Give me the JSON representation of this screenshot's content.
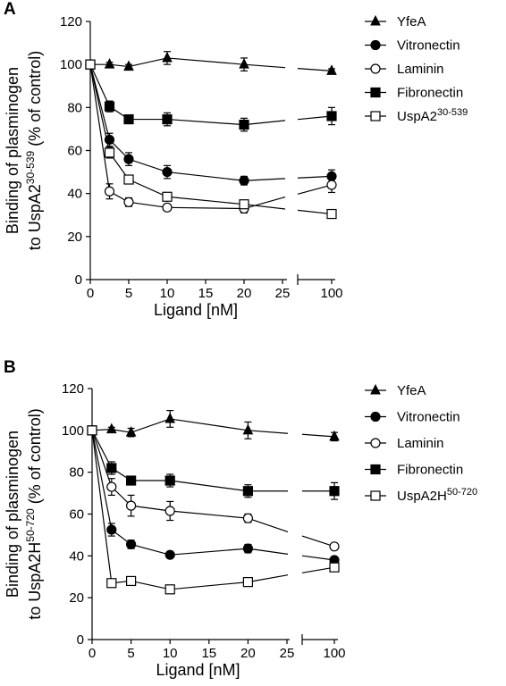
{
  "chart_data": [
    {
      "type": "line",
      "panel": "A",
      "ylabel_line1": "Binding of plasminogen",
      "ylabel_line2_prefix": "to UspA2",
      "ylabel_line2_sup": "30-539",
      "ylabel_line2_suffix": " (% of control)",
      "xlabel": "Ligand [nM]",
      "ylim": [
        0,
        120
      ],
      "yticks": [
        0,
        20,
        40,
        60,
        80,
        100,
        120
      ],
      "xticks": [
        0,
        5,
        10,
        15,
        20,
        25
      ],
      "xbreak_tick": 100,
      "x": [
        0,
        2.5,
        5,
        10,
        20
      ],
      "legend_position": "right",
      "series": [
        {
          "name": "YfeA",
          "name_sup": "",
          "marker": "triangle",
          "values": [
            100,
            100,
            99,
            103,
            100
          ],
          "errors": [
            0,
            1,
            1,
            3,
            3
          ],
          "break_value": 97,
          "break_error": 1
        },
        {
          "name": "Vitronectin",
          "name_sup": "",
          "marker": "circle-filled",
          "values": [
            100,
            65,
            56,
            50,
            46
          ],
          "errors": [
            0,
            3,
            3,
            3,
            2
          ],
          "break_value": 48,
          "break_error": 3
        },
        {
          "name": "Laminin",
          "name_sup": "",
          "marker": "circle-open",
          "values": [
            100,
            41,
            36,
            33.5,
            33
          ],
          "errors": [
            0,
            3.5,
            2,
            1,
            2
          ],
          "break_value": 44,
          "break_error": 3.5
        },
        {
          "name": "Fibronectin",
          "name_sup": "",
          "marker": "square-filled",
          "values": [
            100,
            80.5,
            74.5,
            74.5,
            72
          ],
          "errors": [
            0,
            2.5,
            2,
            3,
            3
          ],
          "break_value": 76,
          "break_error": 4
        },
        {
          "name": "UspA2",
          "name_sup": "30-539",
          "marker": "square-open",
          "values": [
            100,
            59,
            46.5,
            38.5,
            35
          ],
          "errors": [
            0,
            2.5,
            1.5,
            1,
            1
          ],
          "break_value": 30.5,
          "break_error": 1
        }
      ]
    },
    {
      "type": "line",
      "panel": "B",
      "ylabel_line1": "Binding of plasminogen",
      "ylabel_line2_prefix": "to UspA2H",
      "ylabel_line2_sup": "50-720",
      "ylabel_line2_suffix": " (% of control)",
      "xlabel": "Ligand [nM]",
      "ylim": [
        0,
        120
      ],
      "yticks": [
        0,
        20,
        40,
        60,
        80,
        100,
        120
      ],
      "xticks": [
        0,
        5,
        10,
        15,
        20,
        25
      ],
      "xbreak_tick": 100,
      "x": [
        0,
        2.5,
        5,
        10,
        20
      ],
      "legend_position": "right",
      "series": [
        {
          "name": "YfeA",
          "name_sup": "",
          "marker": "triangle",
          "values": [
            100,
            100.5,
            99,
            105.5,
            100
          ],
          "errors": [
            0,
            1,
            2,
            4,
            4
          ],
          "break_value": 97,
          "break_error": 2
        },
        {
          "name": "Vitronectin",
          "name_sup": "",
          "marker": "circle-filled",
          "values": [
            100,
            52.5,
            45.5,
            40.5,
            43.5
          ],
          "errors": [
            0,
            3,
            2,
            1,
            2
          ],
          "break_value": 38,
          "break_error": 1
        },
        {
          "name": "Laminin",
          "name_sup": "",
          "marker": "circle-open",
          "values": [
            100,
            73,
            64,
            61.5,
            58
          ],
          "errors": [
            0,
            4,
            5,
            4.5,
            2
          ],
          "break_value": 44.5,
          "break_error": 1
        },
        {
          "name": "Fibronectin",
          "name_sup": "",
          "marker": "square-filled",
          "values": [
            100,
            82,
            76,
            76,
            71
          ],
          "errors": [
            0,
            3,
            2,
            3,
            3
          ],
          "break_value": 71,
          "break_error": 4
        },
        {
          "name": "UspA2H",
          "name_sup": "50-720",
          "marker": "square-open",
          "values": [
            100,
            27,
            28,
            24,
            27.5
          ],
          "errors": [
            0,
            1,
            2,
            2,
            1
          ],
          "break_value": 34.5,
          "break_error": 1
        }
      ]
    }
  ]
}
